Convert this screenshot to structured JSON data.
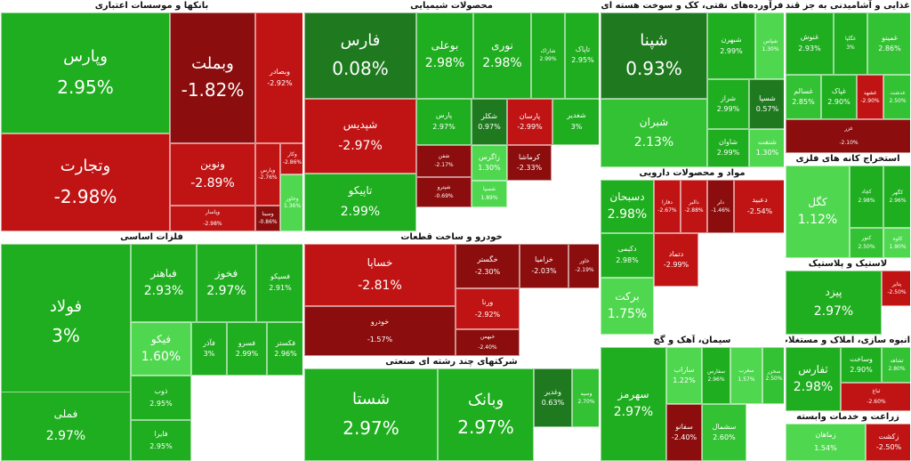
{
  "chart_data": {
    "type": "heatmap",
    "colors": {
      "up_strong": "#1fae1f",
      "up": "#33c233",
      "up_light": "#4fd84f",
      "up_dark": "#1f7a1f",
      "down": "#c01414",
      "down_dark": "#8b0d0d"
    },
    "sectors": [
      {
        "id": "banks",
        "title": "بانکها و موسسات اعتباری",
        "tiles": [
          {
            "symbol": "وپارس",
            "change": 2.95
          },
          {
            "symbol": "وتجارت",
            "change": -2.98
          },
          {
            "symbol": "وبملت",
            "change": -1.82
          },
          {
            "symbol": "وبصادر",
            "change": -2.92
          },
          {
            "symbol": "ونوین",
            "change": -2.89
          },
          {
            "symbol": "وپاسار",
            "change": -2.98
          },
          {
            "symbol": "وپارس",
            "change": -2.76
          },
          {
            "symbol": "وکار",
            "change": -2.86
          },
          {
            "symbol": "وسینا",
            "change": -0.86
          },
          {
            "symbol": "وخاور",
            "change": 1.36
          }
        ]
      },
      {
        "id": "chemical",
        "title": "محصولات شیمیایی",
        "tiles": [
          {
            "symbol": "فارس",
            "change": 0.08
          },
          {
            "symbol": "شپدیس",
            "change": -2.97
          },
          {
            "symbol": "تاپیکو",
            "change": 2.99
          },
          {
            "symbol": "بوعلی",
            "change": 2.98
          },
          {
            "symbol": "نوری",
            "change": 2.98
          },
          {
            "symbol": "شاراک",
            "change": 2.99
          },
          {
            "symbol": "تاپاک",
            "change": 2.95
          },
          {
            "symbol": "پارس",
            "change": 2.97
          },
          {
            "symbol": "شکلر",
            "change": 0.97
          },
          {
            "symbol": "پارسان",
            "change": -2.99
          },
          {
            "symbol": "شغدیر",
            "change": 3.0
          },
          {
            "symbol": "شفن",
            "change": -2.17
          },
          {
            "symbol": "کرماشا",
            "change": -2.33
          },
          {
            "symbol": "زاگرس",
            "change": 1.3
          },
          {
            "symbol": "شپترو",
            "change": -0.69
          },
          {
            "symbol": "شسپا",
            "change": 1.89
          }
        ]
      },
      {
        "id": "oil",
        "title": "فرآورده‌های نفتی، کک و سوخت هسته ای",
        "tiles": [
          {
            "symbol": "شپنا",
            "change": 0.93
          },
          {
            "symbol": "شبران",
            "change": 2.13
          },
          {
            "symbol": "شبهرن",
            "change": 2.99
          },
          {
            "symbol": "شپاس",
            "change": 1.3
          },
          {
            "symbol": "شراز",
            "change": 2.99
          },
          {
            "symbol": "شسپا",
            "change": 0.57
          },
          {
            "symbol": "شاوان",
            "change": 2.99
          },
          {
            "symbol": "شنفت",
            "change": 1.3
          }
        ]
      },
      {
        "id": "food",
        "title": "غذایی و آشامیدنی به جز قند و شکر",
        "tiles": [
          {
            "symbol": "غنوش",
            "change": 2.93
          },
          {
            "symbol": "غگلپا",
            "change": 3.0
          },
          {
            "symbol": "غمینو",
            "change": 2.86
          },
          {
            "symbol": "غسالم",
            "change": 2.85
          },
          {
            "symbol": "غپاک",
            "change": 2.9
          },
          {
            "symbol": "غشهد",
            "change": -2.9
          },
          {
            "symbol": "غدشت",
            "change": 2.5
          },
          {
            "symbol": "غزر",
            "change": -2.1
          }
        ]
      },
      {
        "id": "metals",
        "title": "فلزات اساسی",
        "tiles": [
          {
            "symbol": "فولاد",
            "change": 3.0
          },
          {
            "symbol": "فملی",
            "change": 2.97
          },
          {
            "symbol": "فباهنر",
            "change": 2.93
          },
          {
            "symbol": "فخوز",
            "change": 2.97
          },
          {
            "symbol": "فسپکو",
            "change": 2.91
          },
          {
            "symbol": "فیکو",
            "change": 1.6
          },
          {
            "symbol": "فآذر",
            "change": 3.0
          },
          {
            "symbol": "فسرو",
            "change": 2.99
          },
          {
            "symbol": "فکستر",
            "change": 2.96
          },
          {
            "symbol": "ذوب",
            "change": 2.95
          },
          {
            "symbol": "فایرا",
            "change": 2.95
          }
        ]
      },
      {
        "id": "auto",
        "title": "خودرو و ساخت قطعات",
        "tiles": [
          {
            "symbol": "خساپا",
            "change": -2.81
          },
          {
            "symbol": "خودرو",
            "change": -1.57
          },
          {
            "symbol": "خگستر",
            "change": -2.3
          },
          {
            "symbol": "خزامیا",
            "change": -2.03
          },
          {
            "symbol": "خاور",
            "change": -2.19
          },
          {
            "symbol": "ورنا",
            "change": -2.92
          },
          {
            "symbol": "خبهمن",
            "change": -2.4
          }
        ]
      },
      {
        "id": "multi",
        "title": "شرکتهای چند رشته ای صنعتی",
        "tiles": [
          {
            "symbol": "شستا",
            "change": 2.97
          },
          {
            "symbol": "وبانک",
            "change": 2.97
          },
          {
            "symbol": "وغدیر",
            "change": 0.63
          },
          {
            "symbol": "وسپه",
            "change": 2.7
          }
        ]
      },
      {
        "id": "pharma",
        "title": "مواد و محصولات دارویی",
        "tiles": [
          {
            "symbol": "دسبحان",
            "change": 2.98
          },
          {
            "symbol": "دفارا",
            "change": -2.67
          },
          {
            "symbol": "دالبر",
            "change": -2.88
          },
          {
            "symbol": "دلر",
            "change": -1.46
          },
          {
            "symbol": "دعبید",
            "change": -2.54
          },
          {
            "symbol": "دکیمی",
            "change": 2.98
          },
          {
            "symbol": "برکت",
            "change": 1.75
          },
          {
            "symbol": "دتماد",
            "change": -2.99
          }
        ]
      },
      {
        "id": "cement",
        "title": "سیمان، آهک و گچ",
        "tiles": [
          {
            "symbol": "سهرمز",
            "change": 2.97
          },
          {
            "symbol": "ساراب",
            "change": 1.22
          },
          {
            "symbol": "سفارس",
            "change": 2.96
          },
          {
            "symbol": "سغرب",
            "change": 1.57
          },
          {
            "symbol": "سخزر",
            "change": 2.5
          },
          {
            "symbol": "سفانو",
            "change": -2.4
          },
          {
            "symbol": "سشمال",
            "change": 2.6
          }
        ]
      },
      {
        "id": "mining",
        "title": "استخراج کانه های فلزی",
        "tiles": [
          {
            "symbol": "کگل",
            "change": 1.12
          },
          {
            "symbol": "کچاد",
            "change": 2.98
          },
          {
            "symbol": "کگهر",
            "change": 2.96
          },
          {
            "symbol": "کنور",
            "change": 2.5
          },
          {
            "symbol": "کاوه",
            "change": 1.9
          }
        ]
      },
      {
        "id": "plastic",
        "title": "لاستیک و پلاستیک",
        "tiles": [
          {
            "symbol": "پیزد",
            "change": 2.97
          },
          {
            "symbol": "پتایر",
            "change": -2.5
          }
        ]
      },
      {
        "id": "realestate",
        "title": "انبوه سازی، املاک و مستغلات",
        "tiles": [
          {
            "symbol": "ثفارس",
            "change": 2.98
          },
          {
            "symbol": "وساخت",
            "change": 2.9
          },
          {
            "symbol": "ثشاهد",
            "change": 2.8
          },
          {
            "symbol": "ثباغ",
            "change": -2.6
          }
        ]
      },
      {
        "id": "agri",
        "title": "زراعت و خدمات وابسته",
        "tiles": [
          {
            "symbol": "زماهان",
            "change": 1.54
          },
          {
            "symbol": "زکشت",
            "change": -2.5
          }
        ]
      }
    ]
  }
}
